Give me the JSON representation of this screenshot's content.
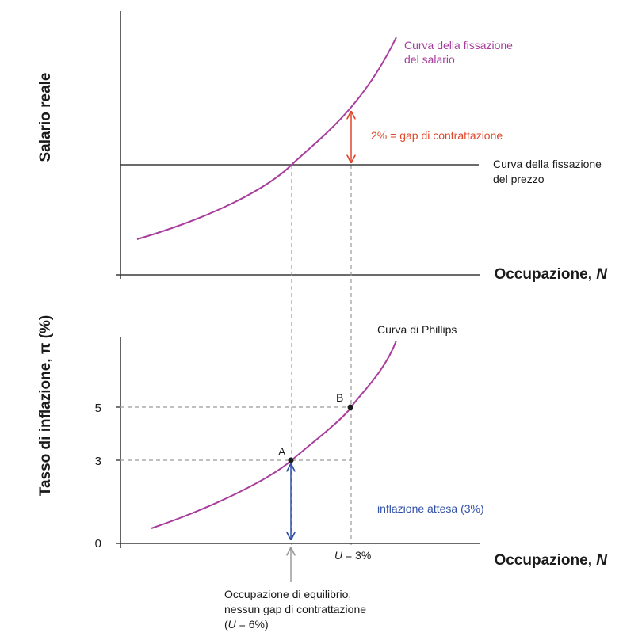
{
  "colors": {
    "curve": "#a83d9d",
    "gap": "#e0462a",
    "expected": "#3050a8",
    "axis": "#3a3a3a",
    "dashed": "#9a9a9a",
    "grey_arrow": "#9a9a9a"
  },
  "top_panel": {
    "y_axis_title": "Salario reale",
    "x_axis_title_prefix": "Occupazione, ",
    "x_axis_title_var": "N",
    "wage_curve_line1": "Curva della fissazione",
    "wage_curve_line2": "del salario",
    "price_curve_line1": "Curva della fissazione",
    "price_curve_line2": "del prezzo",
    "gap_label": "2% = gap di contrattazione"
  },
  "bottom_panel": {
    "y_axis_title": "Tasso di inflazione, π (%)",
    "x_axis_title_prefix": "Occupazione, ",
    "x_axis_title_var": "N",
    "phillips_label": "Curva di Phillips",
    "ticks": [
      "0",
      "3",
      "5"
    ],
    "point_a": "A",
    "point_b": "B",
    "expected_label": "inflazione attesa (3%)",
    "u_label_var": "U",
    "u_label_rest": " = 3%",
    "eq_line1": "Occupazione di equilibrio,",
    "eq_line2": "nessun gap di contrattazione",
    "eq_line3_open": "(",
    "eq_line3_var": "U",
    "eq_line3_rest": " = 6%)"
  },
  "chart_data": {
    "type": "line",
    "top": {
      "series": [
        {
          "name": "Curva della fissazione del salario",
          "shape": "increasing convex"
        },
        {
          "name": "Curva della fissazione del prezzo",
          "shape": "horizontal"
        }
      ],
      "annotation": "2% = gap di contrattazione"
    },
    "bottom": {
      "ylabel": "Tasso di inflazione, π (%)",
      "xlabel": "Occupazione, N",
      "y_ticks": [
        0,
        3,
        5
      ],
      "points": [
        {
          "name": "A",
          "inflation": 3
        },
        {
          "name": "B",
          "inflation": 5
        }
      ],
      "annotations": [
        "inflazione attesa (3%)",
        "U = 3%",
        "Occupazione di equilibrio, nessun gap di contrattazione (U = 6%)"
      ]
    }
  }
}
